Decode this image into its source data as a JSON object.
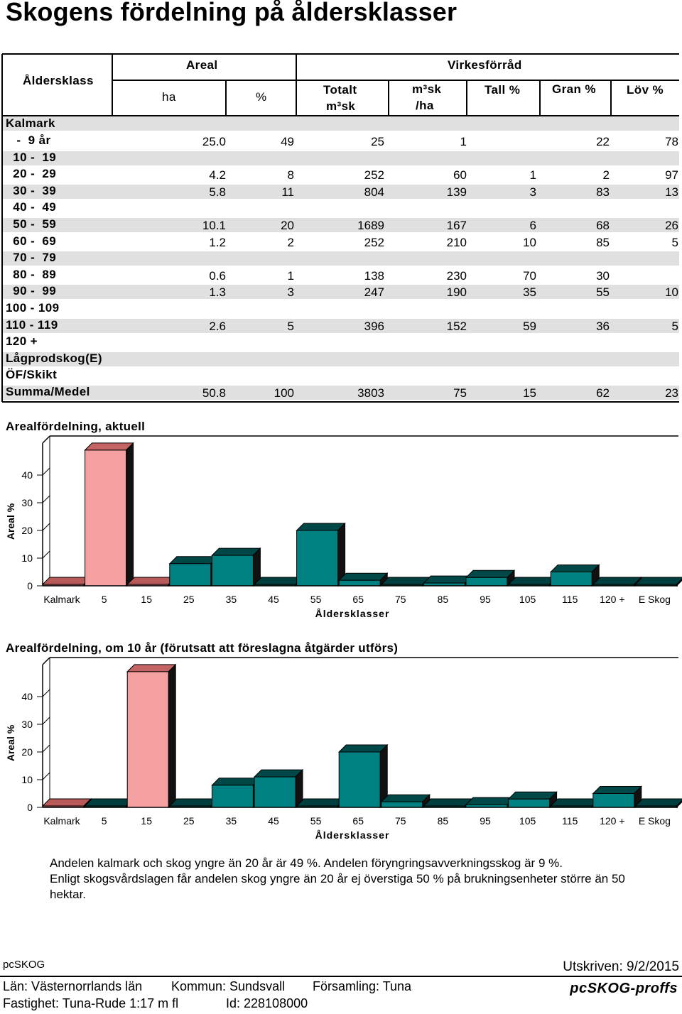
{
  "title": "Skogens fördelning på åldersklasser",
  "table": {
    "col_aldersklass": "Åldersklass",
    "grp_areal": "Areal",
    "grp_virkesforrad": "Virkesförråd",
    "col_ha": "ha",
    "col_pct": "%",
    "col_totalt": [
      "Totalt",
      "m³sk"
    ],
    "col_m3ha": [
      "m³sk",
      "/ha"
    ],
    "col_tall": "Tall %",
    "col_gran": "Gran %",
    "col_lov": "Löv %",
    "section_label": "Kalmark",
    "rows": [
      {
        "label": "   -  9 år",
        "ha": "25.0",
        "pct": "49",
        "tot": "25",
        "m3ha": "1",
        "tall": "",
        "gran": "22",
        "lov": "78"
      },
      {
        "label": "  10 -  19",
        "ha": "",
        "pct": "",
        "tot": "",
        "m3ha": "",
        "tall": "",
        "gran": "",
        "lov": ""
      },
      {
        "label": "  20 -  29",
        "ha": "4.2",
        "pct": "8",
        "tot": "252",
        "m3ha": "60",
        "tall": "1",
        "gran": "2",
        "lov": "97"
      },
      {
        "label": "  30 -  39",
        "ha": "5.8",
        "pct": "11",
        "tot": "804",
        "m3ha": "139",
        "tall": "3",
        "gran": "83",
        "lov": "13"
      },
      {
        "label": "  40 -  49",
        "ha": "",
        "pct": "",
        "tot": "",
        "m3ha": "",
        "tall": "",
        "gran": "",
        "lov": ""
      },
      {
        "label": "  50 -  59",
        "ha": "10.1",
        "pct": "20",
        "tot": "1689",
        "m3ha": "167",
        "tall": "6",
        "gran": "68",
        "lov": "26"
      },
      {
        "label": "  60 -  69",
        "ha": "1.2",
        "pct": "2",
        "tot": "252",
        "m3ha": "210",
        "tall": "10",
        "gran": "85",
        "lov": "5"
      },
      {
        "label": "  70 -  79",
        "ha": "",
        "pct": "",
        "tot": "",
        "m3ha": "",
        "tall": "",
        "gran": "",
        "lov": ""
      },
      {
        "label": "  80 -  89",
        "ha": "0.6",
        "pct": "1",
        "tot": "138",
        "m3ha": "230",
        "tall": "70",
        "gran": "30",
        "lov": ""
      },
      {
        "label": "  90 -  99",
        "ha": "1.3",
        "pct": "3",
        "tot": "247",
        "m3ha": "190",
        "tall": "35",
        "gran": "55",
        "lov": "10"
      },
      {
        "label": "100 - 109",
        "ha": "",
        "pct": "",
        "tot": "",
        "m3ha": "",
        "tall": "",
        "gran": "",
        "lov": ""
      },
      {
        "label": "110 - 119",
        "ha": "2.6",
        "pct": "5",
        "tot": "396",
        "m3ha": "152",
        "tall": "59",
        "gran": "36",
        "lov": "5"
      },
      {
        "label": "120 +",
        "ha": "",
        "pct": "",
        "tot": "",
        "m3ha": "",
        "tall": "",
        "gran": "",
        "lov": ""
      },
      {
        "label": "Lågprodskog(E)",
        "ha": "",
        "pct": "",
        "tot": "",
        "m3ha": "",
        "tall": "",
        "gran": "",
        "lov": ""
      },
      {
        "label": "ÖF/Skikt",
        "ha": "",
        "pct": "",
        "tot": "",
        "m3ha": "",
        "tall": "",
        "gran": "",
        "lov": ""
      },
      {
        "label": "Summa/Medel",
        "ha": "50.8",
        "pct": "100",
        "tot": "3803",
        "m3ha": "75",
        "tall": "15",
        "gran": "62",
        "lov": "23"
      }
    ]
  },
  "chart_data": [
    {
      "type": "bar",
      "title": "Arealfördelning, aktuell",
      "ylabel": "Areal %",
      "xlabel": "Åldersklasser",
      "categories": [
        "Kalmark",
        "5",
        "15",
        "25",
        "35",
        "45",
        "55",
        "65",
        "75",
        "85",
        "95",
        "105",
        "115",
        "120 +",
        "E Skog"
      ],
      "values": [
        0,
        49,
        0,
        8,
        11,
        0,
        20,
        2,
        0,
        1,
        3,
        0,
        5,
        0,
        0
      ],
      "yticks": [
        "0",
        "10",
        "20",
        "30",
        "40"
      ],
      "ylim": [
        0,
        50
      ],
      "grid": false,
      "colors": {
        "highlight": "#f4a0a0",
        "highlight_dark": "#b85a5a",
        "normal": "#008080",
        "normal_dark": "#003f3f"
      }
    },
    {
      "type": "bar",
      "title": "Arealfördelning, om 10 år (förutsatt att föreslagna åtgärder utförs)",
      "ylabel": "Areal %",
      "xlabel": "Åldersklasser",
      "categories": [
        "Kalmark",
        "5",
        "15",
        "25",
        "35",
        "45",
        "55",
        "65",
        "75",
        "85",
        "95",
        "105",
        "115",
        "120 +",
        "E Skog"
      ],
      "values": [
        0,
        0,
        49,
        0,
        8,
        11,
        0,
        20,
        2,
        0,
        1,
        3,
        0,
        5,
        0
      ],
      "yticks": [
        "0",
        "10",
        "20",
        "30",
        "40"
      ],
      "ylim": [
        0,
        50
      ],
      "grid": false,
      "colors": {
        "highlight": "#f4a0a0",
        "highlight_dark": "#b85a5a",
        "normal": "#008080",
        "normal_dark": "#003f3f"
      }
    }
  ],
  "note": {
    "line1": "Andelen kalmark och skog yngre än 20 år är 49 %. Andelen föryngringsavverkningsskog är 9 %.",
    "line2": "Enligt skogsvårdslagen får andelen skog yngre än 20 år ej överstiga 50 % på brukningsenheter större än 50 hektar."
  },
  "footer": {
    "program": "pcSKOG",
    "printed": "Utskriven: 9/2/2015",
    "lan": "Län: Västernorrlands län",
    "kommun": "Kommun: Sundsvall",
    "forsamling": "Församling: Tuna",
    "fastighet": "Fastighet: Tuna-Rude 1:17 m fl",
    "id": "Id: 228108000",
    "logo": "pcSKOG-proffs"
  }
}
